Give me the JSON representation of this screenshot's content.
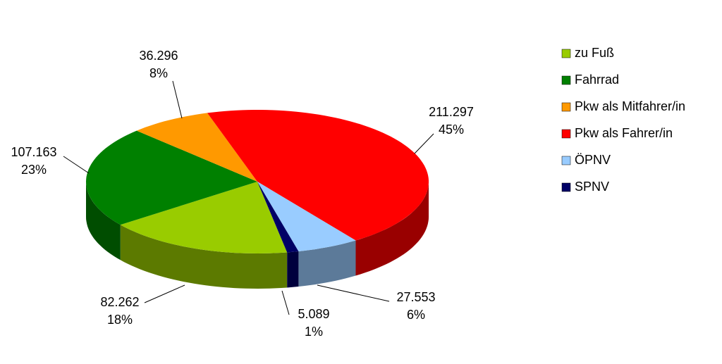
{
  "chart_data": {
    "type": "pie3d",
    "categories": [
      "zu Fuß",
      "Fahrrad",
      "Pkw als Mitfahrer/in",
      "Pkw als Fahrer/in",
      "ÖPNV",
      "SPNV"
    ],
    "values": [
      82262,
      107163,
      36296,
      211297,
      27553,
      5089
    ],
    "value_labels": [
      "82.262",
      "107.163",
      "36.296",
      "211.297",
      "27.553",
      "5.089"
    ],
    "percent_labels": [
      "18%",
      "23%",
      "8%",
      "45%",
      "6%",
      "1%"
    ],
    "colors": [
      "#99cc00",
      "#008000",
      "#ff9900",
      "#ff0000",
      "#99ccff",
      "#000066"
    ],
    "legend": "right"
  }
}
